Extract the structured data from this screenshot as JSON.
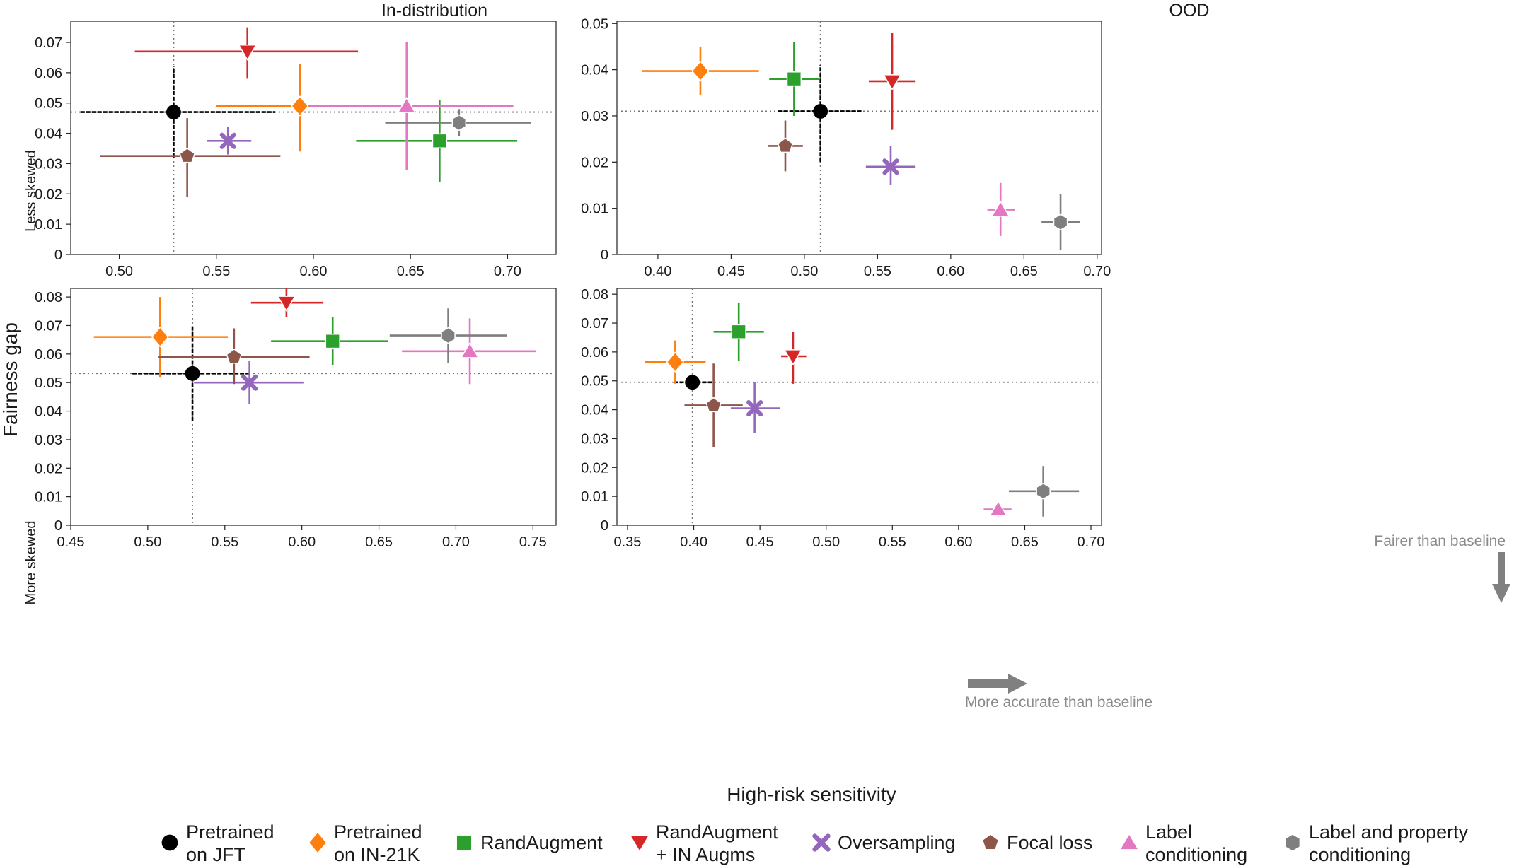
{
  "figure": {
    "ylabel": "Fairness gap",
    "xlabel": "High-risk sensitivity",
    "col_titles": [
      "In-distribution",
      "OOD"
    ],
    "row_labels": [
      "Less skewed",
      "More skewed"
    ]
  },
  "legend": [
    {
      "label_lines": [
        "Pretrained",
        "on JFT"
      ],
      "color": "#000000",
      "marker": "circle"
    },
    {
      "label_lines": [
        "Pretrained",
        "on IN-21K"
      ],
      "color": "#ff7f0e",
      "marker": "diamond"
    },
    {
      "label_lines": [
        "RandAugment"
      ],
      "color": "#2ca02c",
      "marker": "square"
    },
    {
      "label_lines": [
        "RandAugment",
        "+ IN Augms"
      ],
      "color": "#d62728",
      "marker": "triangle-down"
    },
    {
      "label_lines": [
        "Oversampling"
      ],
      "color": "#9467bd",
      "marker": "x"
    },
    {
      "label_lines": [
        "Focal loss"
      ],
      "color": "#8c564b",
      "marker": "pentagon"
    },
    {
      "label_lines": [
        "Label",
        "conditioning"
      ],
      "color": "#e377c2",
      "marker": "triangle-up"
    },
    {
      "label_lines": [
        "Label and property",
        "conditioning"
      ],
      "color": "#7f7f7f",
      "marker": "hexagon"
    }
  ],
  "annotations": {
    "fairer": "Fairer than baseline",
    "more_accurate": "More accurate than baseline"
  },
  "chart_data": [
    {
      "type": "scatter",
      "title": "In-distribution",
      "row": "Less skewed",
      "xlim": [
        0.475,
        0.725
      ],
      "ylim": [
        0,
        0.077
      ],
      "xticks": [
        0.5,
        0.55,
        0.6,
        0.65,
        0.7
      ],
      "yticks": [
        0,
        0.01,
        0.02,
        0.03,
        0.04,
        0.05,
        0.06,
        0.07
      ],
      "baseline": {
        "x": 0.528,
        "y": 0.047
      },
      "points": [
        {
          "series": "Pretrained on JFT",
          "x": 0.528,
          "y": 0.047,
          "xerr": [
            0.48,
            0.58
          ],
          "yerr": [
            0.032,
            0.062
          ]
        },
        {
          "series": "Pretrained on IN-21K",
          "x": 0.593,
          "y": 0.049,
          "xerr": [
            0.55,
            0.638
          ],
          "yerr": [
            0.034,
            0.063
          ]
        },
        {
          "series": "RandAugment",
          "x": 0.665,
          "y": 0.0375,
          "xerr": [
            0.622,
            0.705
          ],
          "yerr": [
            0.024,
            0.051
          ]
        },
        {
          "series": "RandAugment + IN Augms",
          "x": 0.566,
          "y": 0.067,
          "xerr": [
            0.508,
            0.623
          ],
          "yerr": [
            0.058,
            0.075
          ]
        },
        {
          "series": "Oversampling",
          "x": 0.556,
          "y": 0.0375,
          "xerr": [
            0.545,
            0.568
          ],
          "yerr": [
            0.033,
            0.042
          ]
        },
        {
          "series": "Focal loss",
          "x": 0.535,
          "y": 0.0325,
          "xerr": [
            0.49,
            0.583
          ],
          "yerr": [
            0.019,
            0.045
          ]
        },
        {
          "series": "Label conditioning",
          "x": 0.648,
          "y": 0.049,
          "xerr": [
            0.598,
            0.703
          ],
          "yerr": [
            0.028,
            0.07
          ]
        },
        {
          "series": "Label and property conditioning",
          "x": 0.675,
          "y": 0.0435,
          "xerr": [
            0.637,
            0.712
          ],
          "yerr": [
            0.039,
            0.048
          ]
        }
      ]
    },
    {
      "type": "scatter",
      "title": "OOD",
      "row": "Less skewed",
      "xlim": [
        0.372,
        0.703
      ],
      "ylim": [
        0,
        0.0505
      ],
      "xticks": [
        0.4,
        0.45,
        0.5,
        0.55,
        0.6,
        0.65,
        0.7
      ],
      "yticks": [
        0,
        0.01,
        0.02,
        0.03,
        0.04,
        0.05
      ],
      "baseline": {
        "x": 0.511,
        "y": 0.031
      },
      "points": [
        {
          "series": "Pretrained on JFT",
          "x": 0.511,
          "y": 0.031,
          "xerr": [
            0.482,
            0.539
          ],
          "yerr": [
            0.02,
            0.041
          ]
        },
        {
          "series": "Pretrained on IN-21K",
          "x": 0.429,
          "y": 0.0397,
          "xerr": [
            0.389,
            0.469
          ],
          "yerr": [
            0.0345,
            0.045
          ]
        },
        {
          "series": "RandAugment",
          "x": 0.493,
          "y": 0.038,
          "xerr": [
            0.476,
            0.51
          ],
          "yerr": [
            0.03,
            0.046
          ]
        },
        {
          "series": "RandAugment + IN Augms",
          "x": 0.56,
          "y": 0.0375,
          "xerr": [
            0.544,
            0.576
          ],
          "yerr": [
            0.027,
            0.048
          ]
        },
        {
          "series": "Oversampling",
          "x": 0.559,
          "y": 0.019,
          "xerr": [
            0.542,
            0.576
          ],
          "yerr": [
            0.015,
            0.0235
          ]
        },
        {
          "series": "Focal loss",
          "x": 0.487,
          "y": 0.0235,
          "xerr": [
            0.475,
            0.499
          ],
          "yerr": [
            0.018,
            0.029
          ]
        },
        {
          "series": "Label conditioning",
          "x": 0.634,
          "y": 0.0097,
          "xerr": [
            0.625,
            0.644
          ],
          "yerr": [
            0.004,
            0.0155
          ]
        },
        {
          "series": "Label and property conditioning",
          "x": 0.675,
          "y": 0.007,
          "xerr": [
            0.662,
            0.688
          ],
          "yerr": [
            0.001,
            0.013
          ]
        }
      ]
    },
    {
      "type": "scatter",
      "title": "In-distribution",
      "row": "More skewed",
      "xlim": [
        0.45,
        0.765
      ],
      "ylim": [
        0,
        0.083
      ],
      "xticks": [
        0.45,
        0.5,
        0.55,
        0.6,
        0.65,
        0.7,
        0.75
      ],
      "yticks": [
        0,
        0.01,
        0.02,
        0.03,
        0.04,
        0.05,
        0.06,
        0.07,
        0.08
      ],
      "baseline": {
        "x": 0.529,
        "y": 0.0532
      },
      "points": [
        {
          "series": "Pretrained on JFT",
          "x": 0.529,
          "y": 0.0532,
          "xerr": [
            0.49,
            0.567
          ],
          "yerr": [
            0.0365,
            0.07
          ]
        },
        {
          "series": "Pretrained on IN-21K",
          "x": 0.508,
          "y": 0.066,
          "xerr": [
            0.465,
            0.552
          ],
          "yerr": [
            0.052,
            0.08
          ]
        },
        {
          "series": "RandAugment",
          "x": 0.62,
          "y": 0.0645,
          "xerr": [
            0.58,
            0.656
          ],
          "yerr": [
            0.056,
            0.073
          ]
        },
        {
          "series": "RandAugment + IN Augms",
          "x": 0.59,
          "y": 0.078,
          "xerr": [
            0.567,
            0.614
          ],
          "yerr": [
            0.073,
            0.083
          ]
        },
        {
          "series": "Oversampling",
          "x": 0.566,
          "y": 0.05,
          "xerr": [
            0.53,
            0.601
          ],
          "yerr": [
            0.0425,
            0.0575
          ]
        },
        {
          "series": "Focal loss",
          "x": 0.556,
          "y": 0.059,
          "xerr": [
            0.507,
            0.605
          ],
          "yerr": [
            0.0495,
            0.069
          ]
        },
        {
          "series": "Label conditioning",
          "x": 0.709,
          "y": 0.061,
          "xerr": [
            0.665,
            0.752
          ],
          "yerr": [
            0.0495,
            0.0725
          ]
        },
        {
          "series": "Label and property conditioning",
          "x": 0.695,
          "y": 0.0665,
          "xerr": [
            0.657,
            0.733
          ],
          "yerr": [
            0.057,
            0.076
          ]
        }
      ]
    },
    {
      "type": "scatter",
      "title": "OOD",
      "row": "More skewed",
      "xlim": [
        0.342,
        0.708
      ],
      "ylim": [
        0,
        0.082
      ],
      "xticks": [
        0.35,
        0.4,
        0.45,
        0.5,
        0.55,
        0.6,
        0.65,
        0.7
      ],
      "yticks": [
        0,
        0.01,
        0.02,
        0.03,
        0.04,
        0.05,
        0.06,
        0.07,
        0.08
      ],
      "baseline": {
        "x": 0.399,
        "y": 0.0495
      },
      "points": [
        {
          "series": "Pretrained on JFT",
          "x": 0.399,
          "y": 0.0495,
          "xerr": [
            0.385,
            0.415
          ],
          "yerr": [
            0.0495,
            0.0495
          ]
        },
        {
          "series": "Pretrained on IN-21K",
          "x": 0.386,
          "y": 0.0565,
          "xerr": [
            0.363,
            0.409
          ],
          "yerr": [
            0.049,
            0.064
          ]
        },
        {
          "series": "RandAugment",
          "x": 0.434,
          "y": 0.067,
          "xerr": [
            0.415,
            0.453
          ],
          "yerr": [
            0.057,
            0.077
          ]
        },
        {
          "series": "RandAugment + IN Augms",
          "x": 0.475,
          "y": 0.0585,
          "xerr": [
            0.466,
            0.485
          ],
          "yerr": [
            0.049,
            0.067
          ]
        },
        {
          "series": "Oversampling",
          "x": 0.446,
          "y": 0.0405,
          "xerr": [
            0.428,
            0.465
          ],
          "yerr": [
            0.032,
            0.0495
          ]
        },
        {
          "series": "Focal loss",
          "x": 0.415,
          "y": 0.0415,
          "xerr": [
            0.393,
            0.437
          ],
          "yerr": [
            0.027,
            0.056
          ]
        },
        {
          "series": "Label conditioning",
          "x": 0.63,
          "y": 0.0055,
          "xerr": [
            0.619,
            0.64
          ],
          "yerr": [
            0.003,
            0.008
          ]
        },
        {
          "series": "Label and property conditioning",
          "x": 0.664,
          "y": 0.0118,
          "xerr": [
            0.638,
            0.691
          ],
          "yerr": [
            0.003,
            0.0205
          ]
        }
      ]
    }
  ]
}
